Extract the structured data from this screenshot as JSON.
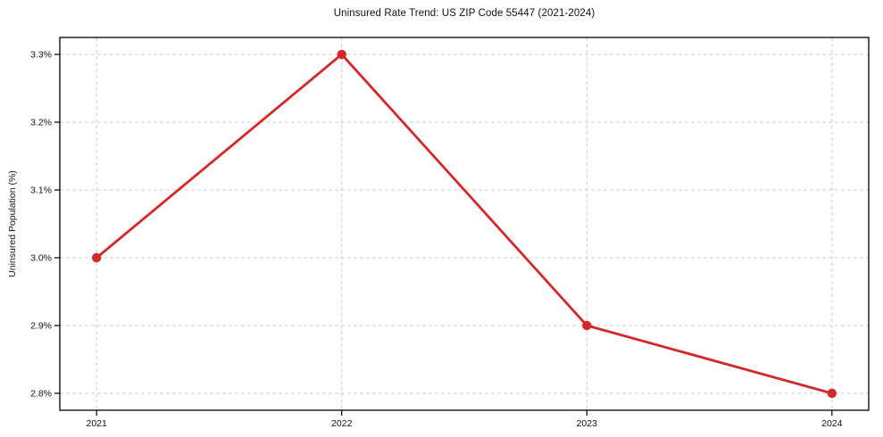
{
  "chart_data": {
    "type": "line",
    "title": "Uninsured Rate Trend: US ZIP Code 55447 (2021-2024)",
    "xlabel": "",
    "ylabel": "Uninsured Population (%)",
    "x": [
      2021,
      2022,
      2023,
      2024
    ],
    "categories": [
      "2021",
      "2022",
      "2023",
      "2024"
    ],
    "series": [
      {
        "name": "Uninsured Population (%)",
        "values": [
          3.0,
          3.3,
          2.9,
          2.8
        ]
      }
    ],
    "xticks": [
      2021,
      2022,
      2023,
      2024
    ],
    "xtick_labels": [
      "2021",
      "2022",
      "2023",
      "2024"
    ],
    "yticks": [
      2.8,
      2.9,
      3.0,
      3.1,
      3.2,
      3.3
    ],
    "ytick_labels": [
      "2.8%",
      "2.9%",
      "3.0%",
      "3.1%",
      "3.2%",
      "3.3%"
    ],
    "xlim": [
      2020.85,
      2024.15
    ],
    "ylim": [
      2.775,
      3.325
    ],
    "grid": true,
    "grid_style": "dashed",
    "legend": "none",
    "line_color": "#d62728",
    "marker": "circle",
    "marker_color": "#d62728",
    "grid_color": "#cccccc",
    "spine_color": "#000000",
    "background_color": "#ffffff"
  }
}
